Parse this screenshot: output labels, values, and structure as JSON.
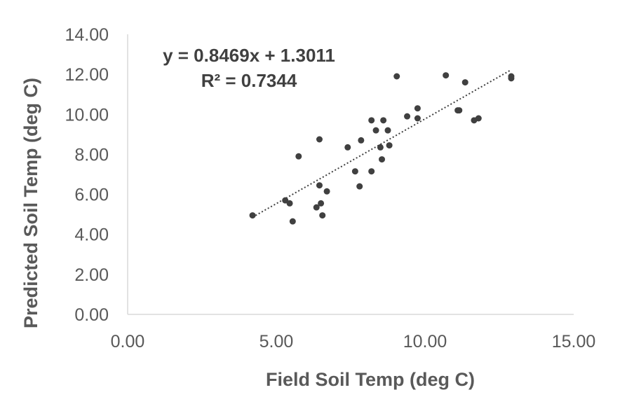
{
  "chart_data": {
    "type": "scatter",
    "title": "",
    "xlabel": "Field Soil Temp (deg C)",
    "ylabel": "Predicted Soil Temp (deg C)",
    "xlim": [
      0,
      15
    ],
    "ylim": [
      0,
      14
    ],
    "x_ticks": [
      "0.00",
      "5.00",
      "10.00",
      "15.00"
    ],
    "y_ticks": [
      "0.00",
      "2.00",
      "4.00",
      "6.00",
      "8.00",
      "10.00",
      "12.00",
      "14.00"
    ],
    "grid": false,
    "legend": "none",
    "series": [
      {
        "points": [
          [
            4.2,
            4.95
          ],
          [
            5.3,
            5.7
          ],
          [
            5.45,
            5.55
          ],
          [
            5.55,
            4.65
          ],
          [
            5.75,
            7.9
          ],
          [
            6.35,
            5.35
          ],
          [
            6.45,
            6.45
          ],
          [
            6.45,
            8.75
          ],
          [
            6.5,
            5.55
          ],
          [
            6.55,
            4.95
          ],
          [
            6.7,
            6.15
          ],
          [
            7.4,
            8.35
          ],
          [
            7.65,
            7.15
          ],
          [
            7.8,
            6.4
          ],
          [
            7.85,
            8.7
          ],
          [
            8.2,
            7.15
          ],
          [
            8.2,
            9.7
          ],
          [
            8.35,
            9.2
          ],
          [
            8.5,
            8.35
          ],
          [
            8.55,
            7.75
          ],
          [
            8.6,
            9.7
          ],
          [
            8.75,
            9.2
          ],
          [
            8.8,
            8.45
          ],
          [
            9.05,
            11.9
          ],
          [
            9.4,
            9.9
          ],
          [
            9.75,
            9.8
          ],
          [
            9.75,
            10.3
          ],
          [
            10.7,
            11.95
          ],
          [
            11.1,
            10.2
          ],
          [
            11.15,
            10.2
          ],
          [
            11.35,
            11.6
          ],
          [
            11.65,
            9.7
          ],
          [
            11.8,
            9.8
          ],
          [
            12.9,
            11.8
          ],
          [
            12.9,
            11.9
          ]
        ]
      }
    ],
    "trendline": {
      "slope": 0.8469,
      "intercept": 1.3011,
      "x_range": [
        4.2,
        12.9
      ]
    },
    "annotations": [
      "y = 0.8469x + 1.3011",
      "R² = 0.7344"
    ],
    "colors": {
      "marker": "#404040",
      "trendline": "#404040",
      "axis": "#d9d9d9",
      "text": "#595959"
    }
  }
}
